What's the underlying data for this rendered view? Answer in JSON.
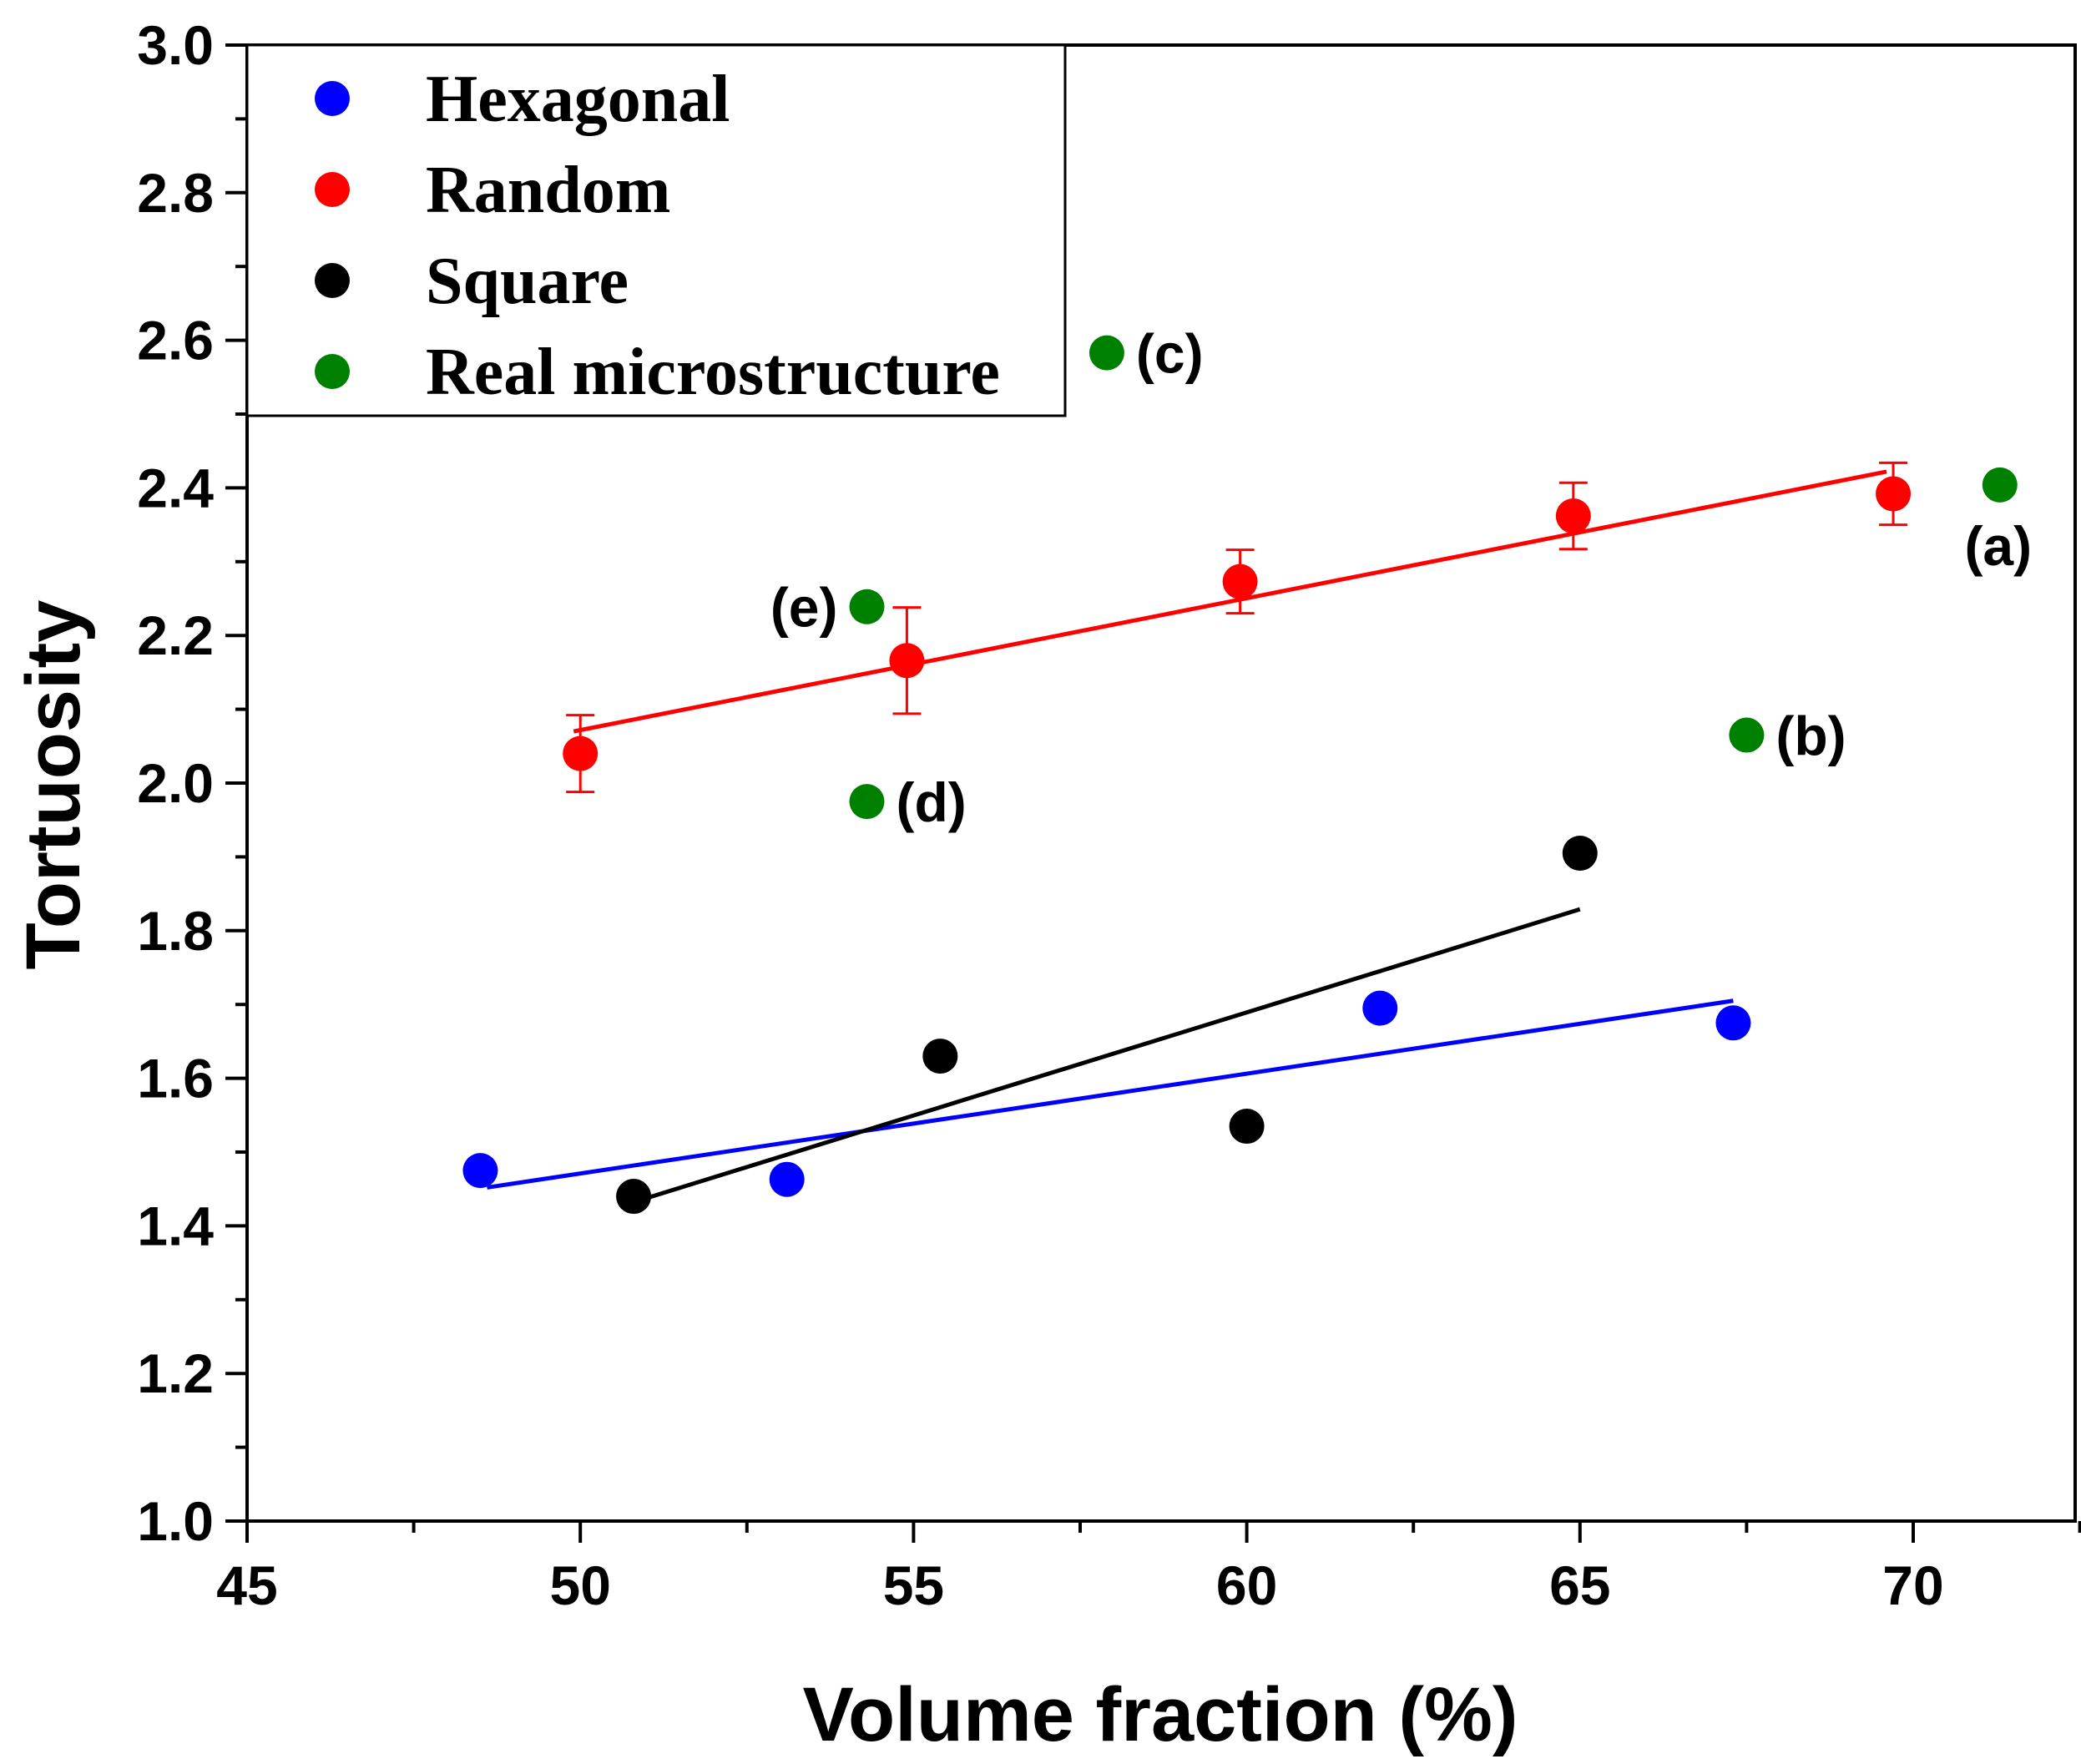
{
  "chart_data": {
    "type": "scatter",
    "title": "",
    "xlabel": "Volume fraction (%)",
    "ylabel": "Tortuosity",
    "xlim": [
      45,
      72.5
    ],
    "ylim": [
      1.0,
      3.0
    ],
    "x_ticks": [
      45,
      50,
      55,
      60,
      65,
      70
    ],
    "y_ticks": [
      1.0,
      1.2,
      1.4,
      1.6,
      1.8,
      2.0,
      2.2,
      2.4,
      2.6,
      2.8,
      3.0
    ],
    "x_tick_labels": [
      "45",
      "50",
      "55",
      "60",
      "65",
      "70"
    ],
    "y_tick_labels": [
      "1.0",
      "1.2",
      "1.4",
      "1.6",
      "1.8",
      "2.0",
      "2.2",
      "2.4",
      "2.6",
      "2.8",
      "3.0"
    ],
    "legend_position": "top-left",
    "grid": false,
    "series": [
      {
        "name": "Hexagonal",
        "color": "#0000ff",
        "points": [
          {
            "x": 48.5,
            "y": 1.475
          },
          {
            "x": 53.1,
            "y": 1.463
          },
          {
            "x": 62.0,
            "y": 1.695
          },
          {
            "x": 67.3,
            "y": 1.675
          }
        ],
        "fit": {
          "x": [
            48.6,
            67.3
          ],
          "y": [
            1.452,
            1.705
          ]
        }
      },
      {
        "name": "Random",
        "color": "#ff0000",
        "points": [
          {
            "x": 50.0,
            "y": 2.04,
            "err": 0.052
          },
          {
            "x": 54.9,
            "y": 2.166,
            "err": 0.072
          },
          {
            "x": 59.9,
            "y": 2.273,
            "err": 0.043
          },
          {
            "x": 64.9,
            "y": 2.362,
            "err": 0.045
          },
          {
            "x": 69.7,
            "y": 2.392,
            "err": 0.042
          }
        ],
        "fit": {
          "x": [
            49.9,
            69.6
          ],
          "y": [
            2.07,
            2.422
          ]
        }
      },
      {
        "name": "Square",
        "color": "#000000",
        "points": [
          {
            "x": 50.8,
            "y": 1.44
          },
          {
            "x": 55.4,
            "y": 1.63
          },
          {
            "x": 60.0,
            "y": 1.535
          },
          {
            "x": 65.0,
            "y": 1.905
          }
        ],
        "fit": {
          "x": [
            50.9,
            65.0
          ],
          "y": [
            1.435,
            1.829
          ]
        }
      },
      {
        "name": "Real microstructure",
        "color": "#008000",
        "points": [
          {
            "x": 71.3,
            "y": 2.404,
            "label": "(a)",
            "label_side": "below"
          },
          {
            "x": 67.5,
            "y": 2.065,
            "label": "(b)",
            "label_side": "right"
          },
          {
            "x": 57.9,
            "y": 2.583,
            "label": "(c)",
            "label_side": "right"
          },
          {
            "x": 54.3,
            "y": 1.975,
            "label": "(d)",
            "label_side": "right"
          },
          {
            "x": 54.3,
            "y": 2.239,
            "label": "(e)",
            "label_side": "left"
          }
        ],
        "fit": null
      }
    ]
  }
}
